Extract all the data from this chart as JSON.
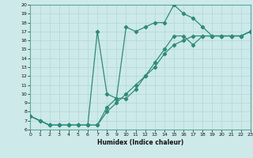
{
  "xlabel": "Humidex (Indice chaleur)",
  "xlim": [
    0,
    23
  ],
  "ylim": [
    6,
    20
  ],
  "xticks": [
    0,
    1,
    2,
    3,
    4,
    5,
    6,
    7,
    8,
    9,
    10,
    11,
    12,
    13,
    14,
    15,
    16,
    17,
    18,
    19,
    20,
    21,
    22,
    23
  ],
  "yticks": [
    6,
    7,
    8,
    9,
    10,
    11,
    12,
    13,
    14,
    15,
    16,
    17,
    18,
    19,
    20
  ],
  "bg_color": "#cde9e9",
  "line_color": "#2e8b7a",
  "grid_color": "#b0d8d8",
  "line1_x": [
    0,
    1,
    2,
    3,
    4,
    5,
    6,
    7,
    8,
    9,
    10,
    11,
    12,
    13,
    14,
    15,
    16,
    17,
    18,
    19,
    20,
    21,
    22,
    23
  ],
  "line1_y": [
    7.5,
    7.0,
    6.5,
    6.5,
    6.5,
    6.5,
    6.5,
    17.0,
    10.0,
    9.5,
    17.5,
    17.0,
    17.5,
    18.0,
    18.0,
    20.0,
    19.0,
    18.5,
    17.5,
    16.5,
    16.5,
    16.5,
    16.5,
    17.0
  ],
  "line2_x": [
    0,
    2,
    3,
    4,
    5,
    6,
    7,
    8,
    9,
    10,
    11,
    12,
    13,
    14,
    15,
    16,
    17,
    18,
    19,
    20,
    21,
    22,
    23
  ],
  "line2_y": [
    7.5,
    6.5,
    6.5,
    6.5,
    6.5,
    6.5,
    6.5,
    8.5,
    9.5,
    9.5,
    10.5,
    12.0,
    13.5,
    15.0,
    16.5,
    16.5,
    15.5,
    16.5,
    16.5,
    16.5,
    16.5,
    16.5,
    17.0
  ],
  "line3_x": [
    0,
    1,
    2,
    3,
    4,
    5,
    6,
    7,
    8,
    9,
    10,
    11,
    12,
    13,
    14,
    15,
    16,
    17,
    18,
    19,
    20,
    21,
    22,
    23
  ],
  "line3_y": [
    7.5,
    7.0,
    6.5,
    6.5,
    6.5,
    6.5,
    6.5,
    6.5,
    8.0,
    9.0,
    10.0,
    11.0,
    12.0,
    13.0,
    14.5,
    15.5,
    16.0,
    16.5,
    16.5,
    16.5,
    16.5,
    16.5,
    16.5,
    17.0
  ]
}
